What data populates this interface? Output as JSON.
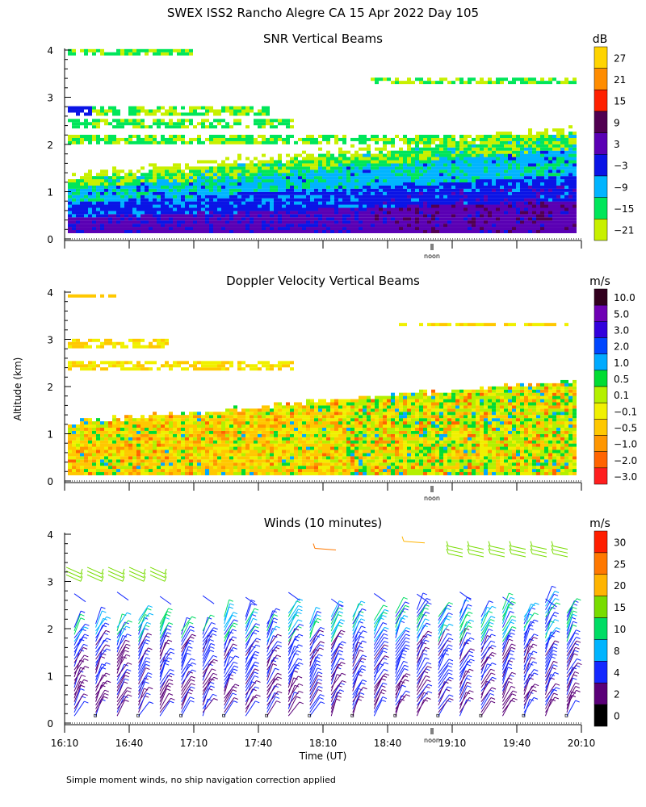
{
  "figure": {
    "title": "SWEX ISS2 Rancho Alegre CA  15 Apr 2022 Day 105",
    "y_axis_label": "Altitude (km)",
    "x_axis_label": "Time (UT)",
    "footnote": "Simple moment winds, no ship navigation correction applied",
    "noon_label": "noon"
  },
  "chart_data": [
    {
      "type": "heatmap",
      "title": "SNR Vertical Beams",
      "unit": "dB",
      "ylabel": "Altitude (km)",
      "y_ticks": [
        "0",
        "1",
        "2",
        "3",
        "4"
      ],
      "ylim": [
        0,
        4
      ],
      "colorbar_labels": [
        "27",
        "21",
        "15",
        "9",
        "3",
        "−3",
        "−9",
        "−15",
        "−21"
      ],
      "colorbar_colors": [
        "#ffd400",
        "#ff8c00",
        "#ff2000",
        "#500050",
        "#5a00b4",
        "#0a14e6",
        "#00b4ff",
        "#00e65a",
        "#c8f000"
      ],
      "description_of_field": "layered returns below ~2.2 km, rising boundary layer, thin elevated layers near 2.4, 2.8, 3.3 and 3.9 km"
    },
    {
      "type": "heatmap",
      "title": "Doppler Velocity Vertical Beams",
      "unit": "m/s",
      "ylabel": "Altitude (km)",
      "y_ticks": [
        "0",
        "1",
        "2",
        "3",
        "4"
      ],
      "ylim": [
        0,
        4
      ],
      "colorbar_labels": [
        "10.0",
        "5.0",
        "3.0",
        "2.0",
        "1.0",
        "0.5",
        "0.1",
        "−0.1",
        "−0.5",
        "−1.0",
        "−2.0",
        "−3.0"
      ],
      "colorbar_colors": [
        "#32001e",
        "#6e00b4",
        "#3200dc",
        "#0046ff",
        "#00aaff",
        "#00dc32",
        "#b4f000",
        "#f0f000",
        "#ffc800",
        "#ff9600",
        "#ff6400",
        "#ff1e1e"
      ]
    },
    {
      "type": "wind-barbs",
      "title": "Winds (10 minutes)",
      "unit": "m/s",
      "ylabel": "Altitude (km)",
      "xlabel": "Time (UT)",
      "y_ticks": [
        "0",
        "1",
        "2",
        "3",
        "4"
      ],
      "ylim": [
        0,
        4
      ],
      "x_ticks": [
        "16:10",
        "16:40",
        "17:10",
        "17:40",
        "18:10",
        "18:40",
        "19:10",
        "19:40",
        "20:10"
      ],
      "colorbar_labels": [
        "30",
        "25",
        "20",
        "15",
        "10",
        "8",
        "4",
        "2",
        "0"
      ],
      "colorbar_colors": [
        "#ff1e00",
        "#ff7800",
        "#ffb400",
        "#78dc00",
        "#00dc64",
        "#00b4ff",
        "#1428ff",
        "#5a0078",
        "#000000"
      ],
      "profile_count": 24
    }
  ]
}
